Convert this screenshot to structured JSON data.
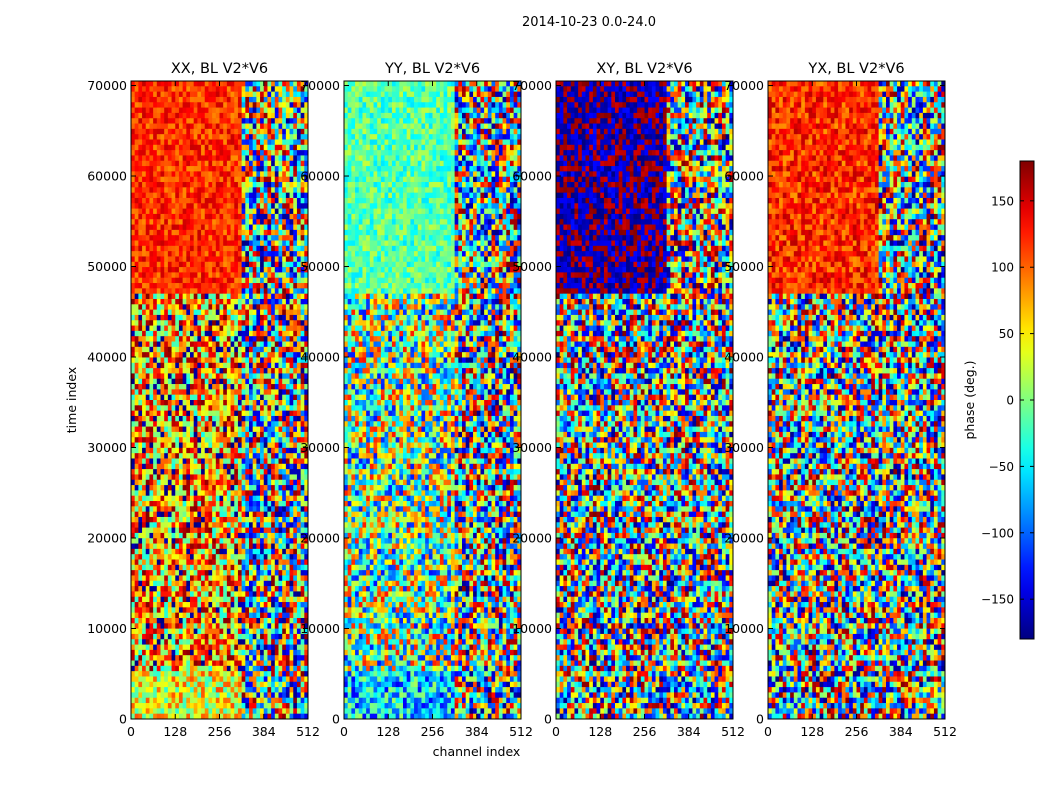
{
  "figure": {
    "suptitle": "2014-10-23 0.0-24.0"
  },
  "colorbar": {
    "label": "phase (deg.)",
    "range": [
      -180,
      180
    ],
    "ticks": [
      -150,
      -100,
      -50,
      0,
      50,
      100,
      150
    ],
    "tick_labels": [
      "−150",
      "−100",
      "−50",
      "0",
      "50",
      "100",
      "150"
    ],
    "colormap": "jet"
  },
  "chart_data": [
    {
      "type": "heatmap",
      "title": "XX, BL V2*V6",
      "xlabel": "",
      "ylabel": "time index",
      "xlim": [
        0,
        512
      ],
      "ylim": [
        0,
        70500
      ],
      "xticks": [
        0,
        128,
        256,
        384,
        512
      ],
      "yticks": [
        0,
        10000,
        20000,
        30000,
        40000,
        50000,
        60000,
        70000
      ],
      "zlim": [
        -180,
        180
      ],
      "regions": [
        {
          "t": [
            0,
            5000
          ],
          "ch": [
            0,
            320
          ],
          "phase": 40,
          "scatter": 70
        },
        {
          "t": [
            5000,
            47000
          ],
          "ch": [
            0,
            320
          ],
          "phase": 80,
          "scatter": 120
        },
        {
          "t": [
            47000,
            70500
          ],
          "ch": [
            0,
            320
          ],
          "phase": 120,
          "scatter": 35
        },
        {
          "t": [
            0,
            70500
          ],
          "ch": [
            320,
            512
          ],
          "phase": 0,
          "scatter": 180
        }
      ]
    },
    {
      "type": "heatmap",
      "title": "YY, BL V2*V6",
      "xlabel": "channel index",
      "ylabel": "",
      "xlim": [
        0,
        512
      ],
      "ylim": [
        0,
        70500
      ],
      "xticks": [
        0,
        128,
        256,
        384,
        512
      ],
      "yticks": [
        0,
        10000,
        20000,
        30000,
        40000,
        50000,
        60000,
        70000
      ],
      "zlim": [
        -180,
        180
      ],
      "regions": [
        {
          "t": [
            0,
            5000
          ],
          "ch": [
            0,
            320
          ],
          "phase": -60,
          "scatter": 80
        },
        {
          "t": [
            5000,
            47000
          ],
          "ch": [
            0,
            320
          ],
          "phase": 0,
          "scatter": 130
        },
        {
          "t": [
            47000,
            70500
          ],
          "ch": [
            0,
            320
          ],
          "phase": -15,
          "scatter": 40
        },
        {
          "t": [
            0,
            70500
          ],
          "ch": [
            320,
            512
          ],
          "phase": 0,
          "scatter": 180
        }
      ]
    },
    {
      "type": "heatmap",
      "title": "XY, BL V2*V6",
      "xlabel": "",
      "ylabel": "",
      "xlim": [
        0,
        512
      ],
      "ylim": [
        0,
        70500
      ],
      "xticks": [
        0,
        128,
        256,
        384,
        512
      ],
      "yticks": [
        0,
        10000,
        20000,
        30000,
        40000,
        50000,
        60000,
        70000
      ],
      "zlim": [
        -180,
        180
      ],
      "regions": [
        {
          "t": [
            0,
            47000
          ],
          "ch": [
            0,
            512
          ],
          "phase": 0,
          "scatter": 180
        },
        {
          "t": [
            47000,
            70500
          ],
          "ch": [
            0,
            320
          ],
          "phase": -170,
          "scatter": 40
        },
        {
          "t": [
            47000,
            70500
          ],
          "ch": [
            320,
            512
          ],
          "phase": 0,
          "scatter": 180
        }
      ]
    },
    {
      "type": "heatmap",
      "title": "YX, BL V2*V6",
      "xlabel": "",
      "ylabel": "",
      "xlim": [
        0,
        512
      ],
      "ylim": [
        0,
        70500
      ],
      "xticks": [
        0,
        128,
        256,
        384,
        512
      ],
      "yticks": [
        0,
        10000,
        20000,
        30000,
        40000,
        50000,
        60000,
        70000
      ],
      "zlim": [
        -180,
        180
      ],
      "regions": [
        {
          "t": [
            0,
            47000
          ],
          "ch": [
            0,
            512
          ],
          "phase": 0,
          "scatter": 180
        },
        {
          "t": [
            47000,
            70500
          ],
          "ch": [
            0,
            320
          ],
          "phase": 120,
          "scatter": 40
        },
        {
          "t": [
            47000,
            70500
          ],
          "ch": [
            320,
            512
          ],
          "phase": 0,
          "scatter": 180
        }
      ]
    }
  ]
}
